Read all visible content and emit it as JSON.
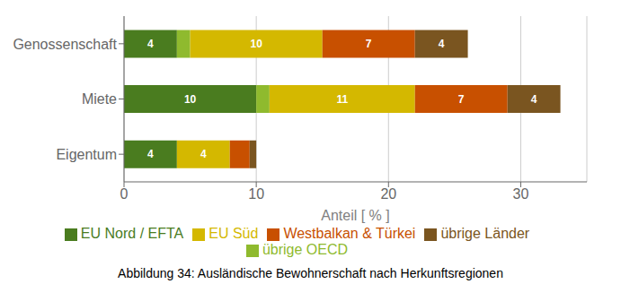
{
  "chart_data": {
    "type": "bar",
    "orientation": "horizontal",
    "stacked": true,
    "title": "Abbildung 34: Ausländische Bewohnerschaft nach Herkunftsregionen",
    "x_label": "Anteil [ % ]",
    "categories": [
      "Genossenschaft",
      "Miete",
      "Eigentum"
    ],
    "series": [
      {
        "name": "EU Nord / EFTA",
        "color": "#4a7c1f",
        "values": [
          4,
          10,
          4
        ],
        "value_labels": [
          "4",
          "10",
          "4"
        ]
      },
      {
        "name": "übrige OECD",
        "color": "#8fba2e",
        "values": [
          1,
          1,
          0
        ],
        "value_labels": [
          null,
          null,
          null
        ]
      },
      {
        "name": "EU Süd",
        "color": "#d4b800",
        "values": [
          10,
          11,
          4
        ],
        "value_labels": [
          "10",
          "11",
          "4"
        ]
      },
      {
        "name": "Westbalkan & Türkei",
        "color": "#c85000",
        "values": [
          7,
          7,
          1.5
        ],
        "value_labels": [
          "7",
          "7",
          null
        ]
      },
      {
        "name": "übrige Länder",
        "color": "#7a5520",
        "values": [
          4,
          4,
          0.5
        ],
        "value_labels": [
          "4",
          "4",
          null
        ]
      }
    ],
    "xlim": [
      0,
      35
    ],
    "xticks": [
      0,
      10,
      20,
      30
    ],
    "grid": true,
    "data_labels": true,
    "legend": "bottom"
  }
}
